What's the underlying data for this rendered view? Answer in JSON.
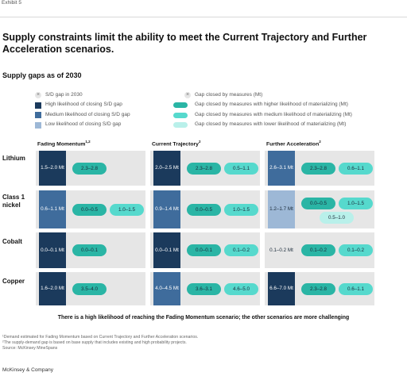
{
  "exhibit": "Exhibit 5",
  "title": "Supply constraints limit the ability to meet the Current Trajectory and Further Acceleration scenarios.",
  "subtitle": "Supply gaps as of 2030",
  "legend": {
    "left": [
      {
        "label": "S/D gap in 2030",
        "marker": "x-mark",
        "color": "#e6e6e6"
      },
      {
        "label": "High likelihood of closing S/D gap",
        "color": "#1b3a5c"
      },
      {
        "label": "Medium likelihood of closing S/D gap",
        "color": "#3f6c9c"
      },
      {
        "label": "Low likelihood of closing S/D gap",
        "color": "#9db8d6"
      }
    ],
    "right": [
      {
        "label": "Gap closed by measures (Mt)",
        "marker": "x-mark",
        "color": "#e6e6e6"
      },
      {
        "label": "Gap closed by measures with higher likelihood of materializing (Mt)",
        "color": "#2ab5a5"
      },
      {
        "label": "Gap closed by measures with medium likelihood of materializing (Mt)",
        "color": "#56d9cd"
      },
      {
        "label": "Gap closed by measures with lower likelihood of materializing (Mt)",
        "color": "#b9f0ea"
      }
    ]
  },
  "colors": {
    "high": "#1b3a5c",
    "medium": "#3f6c9c",
    "low": "#9db8d6",
    "pill_high": "#2ab5a5",
    "pill_medium": "#56d9cd",
    "pill_low": "#b9f0ea",
    "cell": "#e6e6e6"
  },
  "chart_data": {
    "type": "table",
    "columns": [
      "Fading Momentum",
      "Current Trajectory",
      "Further Acceleration"
    ],
    "column_superscripts": [
      "1,2",
      "2",
      "2"
    ],
    "rows": [
      {
        "label": "Lithium",
        "cells": [
          {
            "gap": "1.5–2.0 Mt",
            "likelihood": "high",
            "measures": [
              {
                "value": "2.3–2.8",
                "likelihood": "higher"
              }
            ]
          },
          {
            "gap": "2.0–2.5 Mt",
            "likelihood": "high",
            "measures": [
              {
                "value": "2.3–2.8",
                "likelihood": "higher"
              },
              {
                "value": "0.5–1.1",
                "likelihood": "medium"
              }
            ]
          },
          {
            "gap": "2.6–3.1 Mt",
            "likelihood": "medium",
            "measures": [
              {
                "value": "2.3–2.8",
                "likelihood": "higher"
              },
              {
                "value": "0.6–1.1",
                "likelihood": "medium"
              }
            ]
          }
        ]
      },
      {
        "label": "Class 1 nickel",
        "cells": [
          {
            "gap": "0.6–1.1 Mt",
            "likelihood": "medium",
            "measures": [
              {
                "value": "0.0–0.5",
                "likelihood": "higher"
              },
              {
                "value": "1.0–1.5",
                "likelihood": "medium"
              }
            ]
          },
          {
            "gap": "0.9–1.4 Mt",
            "likelihood": "medium",
            "measures": [
              {
                "value": "0.0–0.5",
                "likelihood": "higher"
              },
              {
                "value": "1.0–1.5",
                "likelihood": "medium"
              }
            ]
          },
          {
            "gap": "1.2–1.7 Mt",
            "likelihood": "low",
            "measures": [
              {
                "value": "0.0–0.5",
                "likelihood": "higher"
              },
              {
                "value": "1.0–1.5",
                "likelihood": "medium"
              },
              {
                "value": "0.5–1.0",
                "likelihood": "lower"
              }
            ]
          }
        ]
      },
      {
        "label": "Cobalt",
        "cells": [
          {
            "gap": "0.0–0.1 Mt",
            "likelihood": "high",
            "measures": [
              {
                "value": "0.0–0.1",
                "likelihood": "higher"
              }
            ]
          },
          {
            "gap": "0.0–0.1 Mt",
            "likelihood": "high",
            "measures": [
              {
                "value": "0.0–0.1",
                "likelihood": "higher"
              },
              {
                "value": "0.1–0.2",
                "likelihood": "medium"
              }
            ]
          },
          {
            "gap": "0.1–0.2 Mt",
            "likelihood": "none",
            "measures": [
              {
                "value": "0.1–0.2",
                "likelihood": "higher"
              },
              {
                "value": "0.1–0.2",
                "likelihood": "medium"
              }
            ]
          }
        ]
      },
      {
        "label": "Copper",
        "cells": [
          {
            "gap": "1.6–2.0 Mt",
            "likelihood": "high",
            "measures": [
              {
                "value": "3.5–4.0",
                "likelihood": "higher"
              }
            ]
          },
          {
            "gap": "4.0–4.5 Mt",
            "likelihood": "medium",
            "measures": [
              {
                "value": "3.6–3.1",
                "likelihood": "higher"
              },
              {
                "value": "4.6–5.0",
                "likelihood": "medium"
              }
            ]
          },
          {
            "gap": "6.6–7.0 Mt",
            "likelihood": "high",
            "measures": [
              {
                "value": "2.3–2.8",
                "likelihood": "higher"
              },
              {
                "value": "0.6–1.1",
                "likelihood": "medium"
              }
            ]
          }
        ]
      }
    ]
  },
  "conclusion": "There is a high likelihood of reaching the Fading Momentum scenario; the other scenarios are more challenging",
  "footnotes": [
    "¹Demand estimated for Fading Momentum based on Current Trajectory and Further Acceleration scenarios.",
    "²The supply-demand gap is based on base supply that includes existing and high probability projects.",
    "Source: McKinsey MineSpans"
  ],
  "brand": "McKinsey & Company"
}
